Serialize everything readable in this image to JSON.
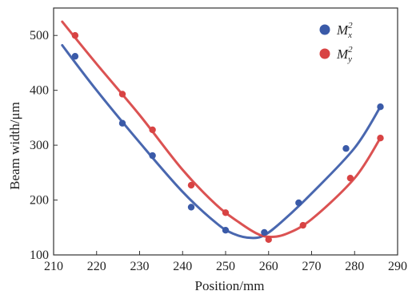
{
  "chart_data": {
    "type": "scatter",
    "xlabel": "Position/mm",
    "ylabel": "Beam width/μm",
    "xlim": [
      210,
      290
    ],
    "ylim": [
      100,
      550
    ],
    "xticks": [
      210,
      220,
      230,
      240,
      250,
      260,
      270,
      280,
      290
    ],
    "yticks": [
      100,
      200,
      300,
      400,
      500
    ],
    "grid": false,
    "legend_position": "top-right",
    "series": [
      {
        "name": "M",
        "subscript": "x",
        "superscript": "2",
        "color": "#3a5aa8",
        "points": [
          {
            "x": 215,
            "y": 462
          },
          {
            "x": 226,
            "y": 340
          },
          {
            "x": 233,
            "y": 281
          },
          {
            "x": 242,
            "y": 187
          },
          {
            "x": 250,
            "y": 145
          },
          {
            "x": 259,
            "y": 141
          },
          {
            "x": 267,
            "y": 195
          },
          {
            "x": 278,
            "y": 294
          },
          {
            "x": 286,
            "y": 370
          }
        ],
        "fit_curve": [
          {
            "x": 212,
            "y": 482
          },
          {
            "x": 220,
            "y": 400
          },
          {
            "x": 230,
            "y": 305
          },
          {
            "x": 240,
            "y": 215
          },
          {
            "x": 248,
            "y": 157
          },
          {
            "x": 252,
            "y": 138
          },
          {
            "x": 256,
            "y": 131
          },
          {
            "x": 259,
            "y": 136
          },
          {
            "x": 263,
            "y": 160
          },
          {
            "x": 270,
            "y": 212
          },
          {
            "x": 280,
            "y": 295
          },
          {
            "x": 286,
            "y": 370
          }
        ]
      },
      {
        "name": "M",
        "subscript": "y",
        "superscript": "2",
        "color": "#d84343",
        "points": [
          {
            "x": 215,
            "y": 500
          },
          {
            "x": 226,
            "y": 393
          },
          {
            "x": 233,
            "y": 328
          },
          {
            "x": 242,
            "y": 227
          },
          {
            "x": 250,
            "y": 177
          },
          {
            "x": 260,
            "y": 128
          },
          {
            "x": 268,
            "y": 154
          },
          {
            "x": 279,
            "y": 240
          },
          {
            "x": 286,
            "y": 313
          }
        ],
        "fit_curve": [
          {
            "x": 212,
            "y": 525
          },
          {
            "x": 220,
            "y": 448
          },
          {
            "x": 230,
            "y": 355
          },
          {
            "x": 240,
            "y": 255
          },
          {
            "x": 248,
            "y": 190
          },
          {
            "x": 253,
            "y": 160
          },
          {
            "x": 257,
            "y": 140
          },
          {
            "x": 260,
            "y": 133
          },
          {
            "x": 264,
            "y": 138
          },
          {
            "x": 270,
            "y": 165
          },
          {
            "x": 280,
            "y": 240
          },
          {
            "x": 286,
            "y": 313
          }
        ]
      }
    ]
  }
}
